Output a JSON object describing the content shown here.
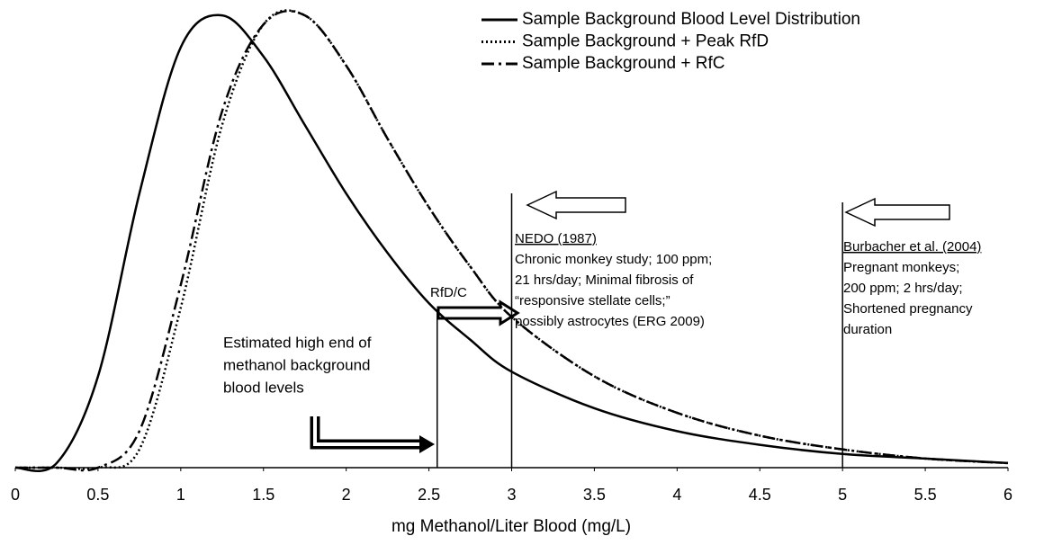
{
  "chart_data": {
    "type": "line",
    "xlabel": "mg Methanol/Liter Blood (mg/L)",
    "x": [
      0,
      0.25,
      0.5,
      0.75,
      1,
      1.25,
      1.5,
      1.75,
      2,
      2.25,
      2.5,
      2.75,
      3,
      3.5,
      4,
      4.5,
      5,
      5.5,
      6
    ],
    "series": [
      {
        "name": "Sample Background Blood Level Distribution",
        "color": "#000000",
        "style": "solid",
        "values": [
          0,
          0.01,
          0.2,
          0.6,
          0.92,
          0.99,
          0.9,
          0.75,
          0.6,
          0.47,
          0.36,
          0.28,
          0.21,
          0.13,
          0.08,
          0.05,
          0.03,
          0.02,
          0.01
        ]
      },
      {
        "name": "Sample Background + Peak RfD",
        "color": "#000000",
        "style": "dotted",
        "values": [
          0,
          0,
          0,
          0.04,
          0.35,
          0.75,
          0.97,
          0.99,
          0.88,
          0.72,
          0.57,
          0.44,
          0.33,
          0.2,
          0.12,
          0.07,
          0.04,
          0.02,
          0.01
        ]
      },
      {
        "name": "Sample Background + RfC",
        "color": "#000000",
        "style": "dashdot",
        "values": [
          0,
          0,
          0,
          0.08,
          0.4,
          0.78,
          0.97,
          0.99,
          0.88,
          0.72,
          0.57,
          0.44,
          0.33,
          0.2,
          0.12,
          0.07,
          0.04,
          0.02,
          0.01
        ]
      }
    ],
    "xlim": [
      0,
      6
    ],
    "xticks": [
      0,
      0.5,
      1,
      1.5,
      2,
      2.5,
      3,
      3.5,
      4,
      4.5,
      5,
      5.5,
      6
    ],
    "ylim": [
      0,
      1
    ],
    "legend": "top right",
    "vlines": [
      2.55,
      3,
      5
    ],
    "annotations": {
      "rfd_label": "RfD/C",
      "background_note": [
        "Estimated high end of",
        "methanol background",
        "blood levels"
      ],
      "nedo": {
        "title": "NEDO (1987)",
        "lines": [
          "Chronic monkey study; 100 ppm;",
          "21 hrs/day; Minimal fibrosis of",
          "“responsive stellate cells;”",
          "possibly astrocytes (ERG 2009)"
        ]
      },
      "burbacher": {
        "title": "Burbacher et al. (2004)",
        "lines": [
          "Pregnant monkeys;",
          "200 ppm; 2 hrs/day;",
          "Shortened pregnancy",
          "duration"
        ]
      }
    }
  }
}
